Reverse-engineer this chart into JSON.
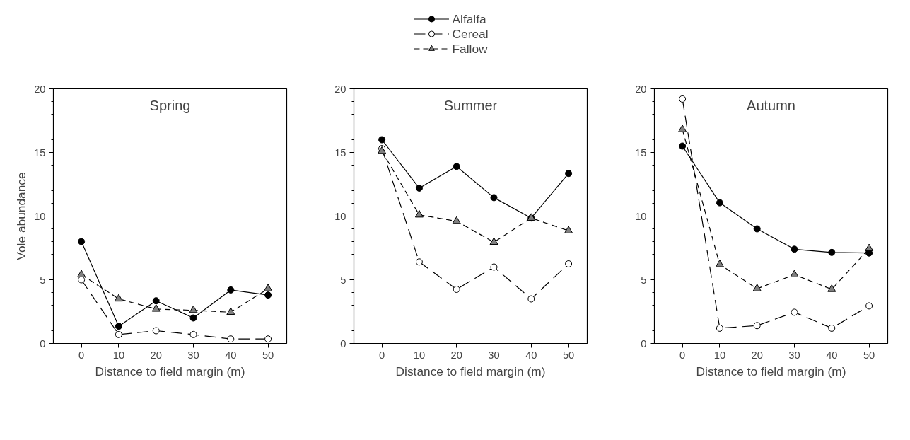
{
  "chart_data": [
    {
      "type": "line",
      "title": "Spring",
      "xlabel": "Distance to field margin (m)",
      "ylabel": "Vole abundance",
      "x": [
        0,
        10,
        20,
        30,
        40,
        50
      ],
      "xlim": [
        -7.5,
        55
      ],
      "xticks": [
        0,
        10,
        20,
        30,
        40,
        50
      ],
      "ylim": [
        0,
        20
      ],
      "yticks": [
        0,
        {
          "value": 1,
          "label": null
        },
        {
          "value": 2,
          "label": null
        },
        {
          "value": 3,
          "label": null
        },
        {
          "value": 4,
          "label": null
        },
        5,
        {
          "value": 6,
          "label": null
        },
        {
          "value": 7,
          "label": null
        },
        {
          "value": 8,
          "label": null
        },
        {
          "value": 9,
          "label": null
        },
        10,
        {
          "value": 11,
          "label": null
        },
        {
          "value": 12,
          "label": null
        },
        {
          "value": 13,
          "label": null
        },
        {
          "value": 14,
          "label": null
        },
        15,
        {
          "value": 16,
          "label": null
        },
        {
          "value": 17,
          "label": null
        },
        {
          "value": 18,
          "label": null
        },
        {
          "value": 19,
          "label": null
        },
        20
      ],
      "grid": false,
      "legend": false,
      "series": [
        {
          "color": "#000000",
          "marker": "circle",
          "line_style": "solid",
          "values": [
            8.0,
            1.35,
            3.35,
            2.0,
            4.2,
            3.8
          ]
        },
        {
          "color": "#ffffff",
          "marker": "circle",
          "line_style": "dashed",
          "values": [
            5.0,
            0.7,
            1.0,
            0.7,
            0.35,
            0.35
          ]
        },
        {
          "color": "#808080",
          "marker": "triangle",
          "line_style": "dashed",
          "values": [
            5.4,
            3.5,
            2.7,
            2.6,
            2.45,
            4.3
          ]
        }
      ]
    },
    {
      "type": "line",
      "title": "Summer",
      "xlabel": "Distance to field margin (m)",
      "x": [
        0,
        10,
        20,
        30,
        40,
        50
      ],
      "xlim": [
        -7.5,
        55
      ],
      "xticks": [
        0,
        10,
        20,
        30,
        40,
        50
      ],
      "ylim": [
        0,
        20
      ],
      "yticks": [
        0,
        {
          "value": 1,
          "label": null
        },
        {
          "value": 2,
          "label": null
        },
        {
          "value": 3,
          "label": null
        },
        {
          "value": 4,
          "label": null
        },
        5,
        {
          "value": 6,
          "label": null
        },
        {
          "value": 7,
          "label": null
        },
        {
          "value": 8,
          "label": null
        },
        {
          "value": 9,
          "label": null
        },
        10,
        {
          "value": 11,
          "label": null
        },
        {
          "value": 12,
          "label": null
        },
        {
          "value": 13,
          "label": null
        },
        {
          "value": 14,
          "label": null
        },
        15,
        {
          "value": 16,
          "label": null
        },
        {
          "value": 17,
          "label": null
        },
        {
          "value": 18,
          "label": null
        },
        {
          "value": 19,
          "label": null
        },
        20
      ],
      "grid": false,
      "legend": "top",
      "series": [
        {
          "name": "Alfalfa",
          "color": "#000000",
          "marker": "circle",
          "line_style": "solid",
          "values": [
            16.0,
            12.2,
            13.9,
            11.45,
            9.85,
            13.35
          ]
        },
        {
          "name": "Cereal",
          "color": "#ffffff",
          "marker": "circle",
          "line_style": "dashed",
          "values": [
            15.3,
            6.4,
            4.25,
            6.0,
            3.5,
            6.25
          ]
        },
        {
          "name": "Fallow",
          "color": "#808080",
          "marker": "triangle",
          "line_style": "dashed",
          "values": [
            15.1,
            10.1,
            9.6,
            7.95,
            9.85,
            8.85
          ]
        }
      ]
    },
    {
      "type": "line",
      "title": "Autumn",
      "xlabel": "Distance to field margin (m)",
      "x": [
        0,
        10,
        20,
        30,
        40,
        50
      ],
      "xlim": [
        -7.5,
        55
      ],
      "xticks": [
        0,
        10,
        20,
        30,
        40,
        50
      ],
      "ylim": [
        0,
        20
      ],
      "yticks": [
        0,
        {
          "value": 1,
          "label": null
        },
        {
          "value": 2,
          "label": null
        },
        {
          "value": 3,
          "label": null
        },
        {
          "value": 4,
          "label": null
        },
        5,
        {
          "value": 6,
          "label": null
        },
        {
          "value": 7,
          "label": null
        },
        {
          "value": 8,
          "label": null
        },
        {
          "value": 9,
          "label": null
        },
        10,
        {
          "value": 11,
          "label": null
        },
        {
          "value": 12,
          "label": null
        },
        {
          "value": 13,
          "label": null
        },
        {
          "value": 14,
          "label": null
        },
        15,
        {
          "value": 16,
          "label": null
        },
        {
          "value": 17,
          "label": null
        },
        {
          "value": 18,
          "label": null
        },
        {
          "value": 19,
          "label": null
        },
        20
      ],
      "grid": false,
      "legend": false,
      "series": [
        {
          "color": "#000000",
          "marker": "circle",
          "line_style": "solid",
          "values": [
            15.5,
            11.05,
            9.0,
            7.4,
            7.15,
            7.1
          ]
        },
        {
          "color": "#ffffff",
          "marker": "circle",
          "line_style": "dashed",
          "values": [
            19.2,
            1.2,
            1.4,
            2.45,
            1.2,
            2.95
          ]
        },
        {
          "color": "#808080",
          "marker": "triangle",
          "line_style": "dashed",
          "values": [
            16.8,
            6.2,
            4.3,
            5.4,
            4.25,
            7.45
          ]
        }
      ]
    }
  ]
}
